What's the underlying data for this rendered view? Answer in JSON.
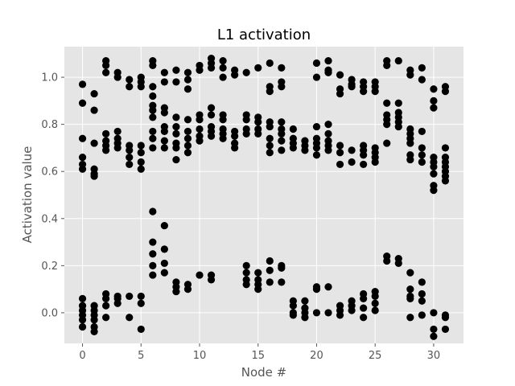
{
  "chart_data": {
    "type": "scatter",
    "title": "L1 activation",
    "xlabel": "Node #",
    "ylabel": "Activation value",
    "xlim": [
      -1.55,
      32.55
    ],
    "ylim": [
      -0.13,
      1.13
    ],
    "xticks": [
      0,
      5,
      10,
      15,
      20,
      25,
      30
    ],
    "yticks": [
      0.0,
      0.2,
      0.4,
      0.6,
      0.8,
      1.0
    ],
    "xtick_labels": [
      "0",
      "5",
      "10",
      "15",
      "20",
      "25",
      "30"
    ],
    "ytick_labels": [
      "0.0",
      "0.2",
      "0.4",
      "0.6",
      "0.8",
      "1.0"
    ],
    "grid": true,
    "style": "ggplot",
    "marker_color": "#000000",
    "points": [
      [
        0,
        0.97
      ],
      [
        0,
        0.89
      ],
      [
        0,
        0.74
      ],
      [
        0,
        0.66
      ],
      [
        0,
        0.63
      ],
      [
        0,
        0.61
      ],
      [
        0,
        0.06
      ],
      [
        0,
        0.03
      ],
      [
        0,
        0.01
      ],
      [
        0,
        -0.01
      ],
      [
        0,
        -0.03
      ],
      [
        0,
        -0.06
      ],
      [
        1,
        0.93
      ],
      [
        1,
        0.86
      ],
      [
        1,
        0.72
      ],
      [
        1,
        0.61
      ],
      [
        1,
        0.59
      ],
      [
        1,
        0.58
      ],
      [
        1,
        0.03
      ],
      [
        1,
        0.01
      ],
      [
        1,
        -0.01
      ],
      [
        1,
        -0.03
      ],
      [
        1,
        -0.06
      ],
      [
        1,
        -0.08
      ],
      [
        2,
        1.07
      ],
      [
        2,
        1.05
      ],
      [
        2,
        1.02
      ],
      [
        2,
        0.76
      ],
      [
        2,
        0.73
      ],
      [
        2,
        0.71
      ],
      [
        2,
        0.69
      ],
      [
        2,
        0.08
      ],
      [
        2,
        0.06
      ],
      [
        2,
        0.03
      ],
      [
        2,
        -0.02
      ],
      [
        3,
        1.02
      ],
      [
        3,
        1.0
      ],
      [
        3,
        0.77
      ],
      [
        3,
        0.74
      ],
      [
        3,
        0.72
      ],
      [
        3,
        0.7
      ],
      [
        3,
        0.07
      ],
      [
        3,
        0.06
      ],
      [
        3,
        0.04
      ],
      [
        4,
        0.99
      ],
      [
        4,
        0.96
      ],
      [
        4,
        0.71
      ],
      [
        4,
        0.69
      ],
      [
        4,
        0.66
      ],
      [
        4,
        0.63
      ],
      [
        4,
        0.07
      ],
      [
        4,
        -0.02
      ],
      [
        5,
        1.0
      ],
      [
        5,
        0.98
      ],
      [
        5,
        0.96
      ],
      [
        5,
        0.71
      ],
      [
        5,
        0.68
      ],
      [
        5,
        0.64
      ],
      [
        5,
        0.61
      ],
      [
        5,
        0.07
      ],
      [
        5,
        0.04
      ],
      [
        5,
        -0.07
      ],
      [
        6,
        1.07
      ],
      [
        6,
        1.05
      ],
      [
        6,
        0.96
      ],
      [
        6,
        0.92
      ],
      [
        6,
        0.88
      ],
      [
        6,
        0.86
      ],
      [
        6,
        0.83
      ],
      [
        6,
        0.77
      ],
      [
        6,
        0.74
      ],
      [
        6,
        0.7
      ],
      [
        6,
        0.43
      ],
      [
        6,
        0.3
      ],
      [
        6,
        0.25
      ],
      [
        6,
        0.2
      ],
      [
        6,
        0.16
      ],
      [
        7,
        1.02
      ],
      [
        7,
        0.98
      ],
      [
        7,
        0.87
      ],
      [
        7,
        0.85
      ],
      [
        7,
        0.79
      ],
      [
        7,
        0.77
      ],
      [
        7,
        0.73
      ],
      [
        7,
        0.7
      ],
      [
        7,
        0.37
      ],
      [
        7,
        0.27
      ],
      [
        7,
        0.21
      ],
      [
        7,
        0.17
      ],
      [
        8,
        1.03
      ],
      [
        8,
        0.98
      ],
      [
        8,
        0.83
      ],
      [
        8,
        0.79
      ],
      [
        8,
        0.76
      ],
      [
        8,
        0.72
      ],
      [
        8,
        0.7
      ],
      [
        8,
        0.65
      ],
      [
        8,
        0.13
      ],
      [
        8,
        0.11
      ],
      [
        8,
        0.09
      ],
      [
        9,
        1.02
      ],
      [
        9,
        0.99
      ],
      [
        9,
        0.95
      ],
      [
        9,
        0.82
      ],
      [
        9,
        0.77
      ],
      [
        9,
        0.74
      ],
      [
        9,
        0.71
      ],
      [
        9,
        0.68
      ],
      [
        9,
        0.12
      ],
      [
        9,
        0.1
      ],
      [
        10,
        1.05
      ],
      [
        10,
        1.03
      ],
      [
        10,
        0.84
      ],
      [
        10,
        0.82
      ],
      [
        10,
        0.78
      ],
      [
        10,
        0.75
      ],
      [
        10,
        0.73
      ],
      [
        10,
        0.16
      ],
      [
        11,
        1.08
      ],
      [
        11,
        1.06
      ],
      [
        11,
        1.04
      ],
      [
        11,
        0.87
      ],
      [
        11,
        0.84
      ],
      [
        11,
        0.79
      ],
      [
        11,
        0.77
      ],
      [
        11,
        0.75
      ],
      [
        11,
        0.16
      ],
      [
        11,
        0.14
      ],
      [
        12,
        1.07
      ],
      [
        12,
        1.04
      ],
      [
        12,
        1.0
      ],
      [
        12,
        0.84
      ],
      [
        12,
        0.82
      ],
      [
        12,
        0.78
      ],
      [
        12,
        0.76
      ],
      [
        12,
        0.74
      ],
      [
        13,
        1.03
      ],
      [
        13,
        1.01
      ],
      [
        13,
        0.77
      ],
      [
        13,
        0.75
      ],
      [
        13,
        0.72
      ],
      [
        13,
        0.7
      ],
      [
        14,
        1.02
      ],
      [
        14,
        0.84
      ],
      [
        14,
        0.82
      ],
      [
        14,
        0.78
      ],
      [
        14,
        0.76
      ],
      [
        14,
        0.2
      ],
      [
        14,
        0.17
      ],
      [
        14,
        0.14
      ],
      [
        14,
        0.12
      ],
      [
        15,
        1.04
      ],
      [
        15,
        0.83
      ],
      [
        15,
        0.81
      ],
      [
        15,
        0.78
      ],
      [
        15,
        0.76
      ],
      [
        15,
        0.17
      ],
      [
        15,
        0.14
      ],
      [
        15,
        0.12
      ],
      [
        15,
        0.1
      ],
      [
        16,
        1.06
      ],
      [
        16,
        0.96
      ],
      [
        16,
        0.94
      ],
      [
        16,
        0.81
      ],
      [
        16,
        0.79
      ],
      [
        16,
        0.74
      ],
      [
        16,
        0.71
      ],
      [
        16,
        0.68
      ],
      [
        16,
        0.22
      ],
      [
        16,
        0.18
      ],
      [
        16,
        0.13
      ],
      [
        17,
        1.04
      ],
      [
        17,
        0.98
      ],
      [
        17,
        0.96
      ],
      [
        17,
        0.81
      ],
      [
        17,
        0.78
      ],
      [
        17,
        0.76
      ],
      [
        17,
        0.73
      ],
      [
        17,
        0.69
      ],
      [
        17,
        0.2
      ],
      [
        17,
        0.19
      ],
      [
        17,
        0.13
      ],
      [
        18,
        0.78
      ],
      [
        18,
        0.74
      ],
      [
        18,
        0.72
      ],
      [
        18,
        0.7
      ],
      [
        18,
        0.05
      ],
      [
        18,
        0.03
      ],
      [
        18,
        0.0
      ],
      [
        18,
        -0.01
      ],
      [
        19,
        0.73
      ],
      [
        19,
        0.71
      ],
      [
        19,
        0.69
      ],
      [
        19,
        0.05
      ],
      [
        19,
        0.02
      ],
      [
        19,
        0.0
      ],
      [
        19,
        -0.02
      ],
      [
        20,
        1.06
      ],
      [
        20,
        1.0
      ],
      [
        20,
        0.79
      ],
      [
        20,
        0.74
      ],
      [
        20,
        0.72
      ],
      [
        20,
        0.7
      ],
      [
        20,
        0.67
      ],
      [
        20,
        0.11
      ],
      [
        20,
        0.1
      ],
      [
        20,
        0.0
      ],
      [
        21,
        1.07
      ],
      [
        21,
        1.03
      ],
      [
        21,
        1.02
      ],
      [
        21,
        0.8
      ],
      [
        21,
        0.76
      ],
      [
        21,
        0.73
      ],
      [
        21,
        0.71
      ],
      [
        21,
        0.69
      ],
      [
        21,
        0.11
      ],
      [
        21,
        0.0
      ],
      [
        22,
        1.01
      ],
      [
        22,
        0.95
      ],
      [
        22,
        0.93
      ],
      [
        22,
        0.71
      ],
      [
        22,
        0.68
      ],
      [
        22,
        0.63
      ],
      [
        22,
        0.03
      ],
      [
        22,
        0.01
      ],
      [
        22,
        -0.01
      ],
      [
        23,
        0.99
      ],
      [
        23,
        0.97
      ],
      [
        23,
        0.96
      ],
      [
        23,
        0.69
      ],
      [
        23,
        0.64
      ],
      [
        23,
        0.05
      ],
      [
        23,
        0.03
      ],
      [
        23,
        0.01
      ],
      [
        24,
        0.98
      ],
      [
        24,
        0.96
      ],
      [
        24,
        0.94
      ],
      [
        24,
        0.71
      ],
      [
        24,
        0.69
      ],
      [
        24,
        0.67
      ],
      [
        24,
        0.63
      ],
      [
        24,
        0.08
      ],
      [
        24,
        0.06
      ],
      [
        24,
        0.02
      ],
      [
        24,
        -0.02
      ],
      [
        25,
        0.98
      ],
      [
        25,
        0.96
      ],
      [
        25,
        0.94
      ],
      [
        25,
        0.7
      ],
      [
        25,
        0.68
      ],
      [
        25,
        0.66
      ],
      [
        25,
        0.64
      ],
      [
        25,
        0.09
      ],
      [
        25,
        0.07
      ],
      [
        25,
        0.04
      ],
      [
        25,
        0.01
      ],
      [
        26,
        1.07
      ],
      [
        26,
        1.05
      ],
      [
        26,
        0.89
      ],
      [
        26,
        0.84
      ],
      [
        26,
        0.82
      ],
      [
        26,
        0.8
      ],
      [
        26,
        0.72
      ],
      [
        26,
        0.24
      ],
      [
        26,
        0.22
      ],
      [
        27,
        1.07
      ],
      [
        27,
        0.89
      ],
      [
        27,
        0.85
      ],
      [
        27,
        0.83
      ],
      [
        27,
        0.81
      ],
      [
        27,
        0.79
      ],
      [
        27,
        0.23
      ],
      [
        27,
        0.21
      ],
      [
        28,
        1.03
      ],
      [
        28,
        1.01
      ],
      [
        28,
        0.78
      ],
      [
        28,
        0.76
      ],
      [
        28,
        0.74
      ],
      [
        28,
        0.72
      ],
      [
        28,
        0.67
      ],
      [
        28,
        0.65
      ],
      [
        28,
        0.17
      ],
      [
        28,
        0.1
      ],
      [
        28,
        0.07
      ],
      [
        28,
        0.06
      ],
      [
        28,
        -0.02
      ],
      [
        29,
        1.04
      ],
      [
        29,
        0.99
      ],
      [
        29,
        0.77
      ],
      [
        29,
        0.7
      ],
      [
        29,
        0.67
      ],
      [
        29,
        0.64
      ],
      [
        29,
        0.13
      ],
      [
        29,
        0.08
      ],
      [
        29,
        0.05
      ],
      [
        29,
        -0.01
      ],
      [
        30,
        0.95
      ],
      [
        30,
        0.9
      ],
      [
        30,
        0.87
      ],
      [
        30,
        0.66
      ],
      [
        30,
        0.64
      ],
      [
        30,
        0.62
      ],
      [
        30,
        0.59
      ],
      [
        30,
        0.54
      ],
      [
        30,
        0.52
      ],
      [
        30,
        0.0
      ],
      [
        30,
        -0.07
      ],
      [
        30,
        -0.1
      ],
      [
        31,
        0.96
      ],
      [
        31,
        0.94
      ],
      [
        31,
        0.7
      ],
      [
        31,
        0.66
      ],
      [
        31,
        0.64
      ],
      [
        31,
        0.62
      ],
      [
        31,
        0.6
      ],
      [
        31,
        0.58
      ],
      [
        31,
        0.56
      ],
      [
        31,
        -0.01
      ],
      [
        31,
        -0.02
      ],
      [
        31,
        -0.07
      ]
    ]
  }
}
